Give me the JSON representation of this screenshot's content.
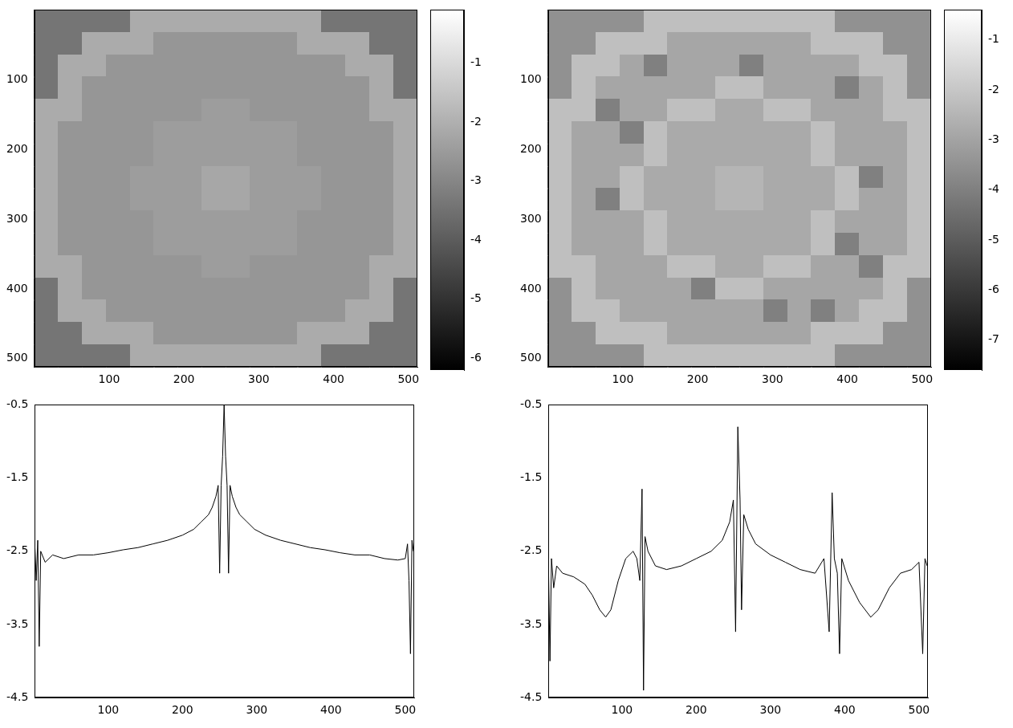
{
  "chart_data": [
    {
      "type": "heatmap",
      "x": [
        16,
        48,
        80,
        112,
        144,
        176,
        208,
        240,
        272,
        304,
        336,
        368,
        400,
        432,
        464,
        496
      ],
      "y": [
        16,
        48,
        80,
        112,
        144,
        176,
        208,
        240,
        272,
        304,
        336,
        368,
        400,
        432,
        464,
        496
      ],
      "cells": [
        [
          -3.4,
          -3.4,
          -3.4,
          -3.4,
          -2.1,
          -2.1,
          -2.1,
          -2.1,
          -2.1,
          -2.1,
          -2.1,
          -2.1,
          -3.4,
          -3.4,
          -3.4,
          -3.4
        ],
        [
          -3.4,
          -3.4,
          -2.1,
          -2.1,
          -2.1,
          -2.6,
          -2.6,
          -2.6,
          -2.6,
          -2.6,
          -2.6,
          -2.1,
          -2.1,
          -2.1,
          -3.4,
          -3.4
        ],
        [
          -3.4,
          -2.1,
          -2.1,
          -2.6,
          -2.6,
          -2.6,
          -2.6,
          -2.6,
          -2.6,
          -2.6,
          -2.6,
          -2.6,
          -2.6,
          -2.1,
          -2.1,
          -3.4
        ],
        [
          -3.4,
          -2.1,
          -2.6,
          -2.6,
          -2.6,
          -2.6,
          -2.6,
          -2.6,
          -2.6,
          -2.6,
          -2.6,
          -2.6,
          -2.6,
          -2.6,
          -2.1,
          -3.4
        ],
        [
          -2.1,
          -2.1,
          -2.6,
          -2.6,
          -2.6,
          -2.6,
          -2.6,
          -2.45,
          -2.45,
          -2.6,
          -2.6,
          -2.6,
          -2.6,
          -2.6,
          -2.1,
          -2.1
        ],
        [
          -2.1,
          -2.6,
          -2.6,
          -2.6,
          -2.6,
          -2.45,
          -2.45,
          -2.45,
          -2.45,
          -2.45,
          -2.45,
          -2.6,
          -2.6,
          -2.6,
          -2.6,
          -2.1
        ],
        [
          -2.1,
          -2.6,
          -2.6,
          -2.6,
          -2.6,
          -2.45,
          -2.45,
          -2.45,
          -2.45,
          -2.45,
          -2.45,
          -2.6,
          -2.6,
          -2.6,
          -2.6,
          -2.1
        ],
        [
          -2.1,
          -2.6,
          -2.6,
          -2.6,
          -2.45,
          -2.45,
          -2.45,
          -2.2,
          -2.2,
          -2.45,
          -2.45,
          -2.45,
          -2.6,
          -2.6,
          -2.6,
          -2.1
        ],
        [
          -2.1,
          -2.6,
          -2.6,
          -2.6,
          -2.45,
          -2.45,
          -2.45,
          -2.2,
          -2.2,
          -2.45,
          -2.45,
          -2.45,
          -2.6,
          -2.6,
          -2.6,
          -2.1
        ],
        [
          -2.1,
          -2.6,
          -2.6,
          -2.6,
          -2.6,
          -2.45,
          -2.45,
          -2.45,
          -2.45,
          -2.45,
          -2.45,
          -2.6,
          -2.6,
          -2.6,
          -2.6,
          -2.1
        ],
        [
          -2.1,
          -2.6,
          -2.6,
          -2.6,
          -2.6,
          -2.45,
          -2.45,
          -2.45,
          -2.45,
          -2.45,
          -2.45,
          -2.6,
          -2.6,
          -2.6,
          -2.6,
          -2.1
        ],
        [
          -2.1,
          -2.1,
          -2.6,
          -2.6,
          -2.6,
          -2.6,
          -2.6,
          -2.45,
          -2.45,
          -2.6,
          -2.6,
          -2.6,
          -2.6,
          -2.6,
          -2.1,
          -2.1
        ],
        [
          -3.4,
          -2.1,
          -2.6,
          -2.6,
          -2.6,
          -2.6,
          -2.6,
          -2.6,
          -2.6,
          -2.6,
          -2.6,
          -2.6,
          -2.6,
          -2.6,
          -2.1,
          -3.4
        ],
        [
          -3.4,
          -2.1,
          -2.1,
          -2.6,
          -2.6,
          -2.6,
          -2.6,
          -2.6,
          -2.6,
          -2.6,
          -2.6,
          -2.6,
          -2.6,
          -2.1,
          -2.1,
          -3.4
        ],
        [
          -3.4,
          -3.4,
          -2.1,
          -2.1,
          -2.1,
          -2.6,
          -2.6,
          -2.6,
          -2.6,
          -2.6,
          -2.6,
          -2.1,
          -2.1,
          -2.1,
          -3.4,
          -3.4
        ],
        [
          -3.4,
          -3.4,
          -3.4,
          -3.4,
          -2.1,
          -2.1,
          -2.1,
          -2.1,
          -2.1,
          -2.1,
          -2.1,
          -2.1,
          -3.4,
          -3.4,
          -3.4,
          -3.4
        ]
      ],
      "xlim": [
        0,
        512
      ],
      "ylim": [
        512,
        0
      ],
      "xticks": [
        100,
        200,
        300,
        400,
        500
      ],
      "yticks": [
        100,
        200,
        300,
        400,
        500
      ],
      "colorbar_range": [
        -6.2,
        -0.1
      ],
      "colorbar_ticks": [
        -6,
        -5,
        -4,
        -3,
        -2,
        -1
      ],
      "grid": false
    },
    {
      "type": "heatmap",
      "x": [
        16,
        48,
        80,
        112,
        144,
        176,
        208,
        240,
        272,
        304,
        336,
        368,
        400,
        432,
        464,
        496
      ],
      "y": [
        16,
        48,
        80,
        112,
        144,
        176,
        208,
        240,
        272,
        304,
        336,
        368,
        400,
        432,
        464,
        496
      ],
      "cells": [
        [
          -3.5,
          -3.5,
          -3.5,
          -3.5,
          -2.2,
          -2.2,
          -2.2,
          -2.2,
          -2.2,
          -2.2,
          -2.2,
          -2.2,
          -3.5,
          -3.5,
          -3.5,
          -3.5
        ],
        [
          -3.5,
          -3.5,
          -2.2,
          -2.2,
          -2.2,
          -2.9,
          -2.9,
          -2.9,
          -2.9,
          -2.9,
          -2.9,
          -2.2,
          -2.2,
          -2.2,
          -3.5,
          -3.5
        ],
        [
          -3.5,
          -2.2,
          -2.2,
          -2.9,
          -4.0,
          -2.9,
          -2.9,
          -2.9,
          -4.0,
          -2.9,
          -2.9,
          -2.9,
          -2.9,
          -2.2,
          -2.2,
          -3.5
        ],
        [
          -3.5,
          -2.2,
          -2.9,
          -2.9,
          -2.9,
          -2.9,
          -2.9,
          -2.2,
          -2.2,
          -2.9,
          -2.9,
          -2.9,
          -4.0,
          -2.9,
          -2.2,
          -3.5
        ],
        [
          -2.2,
          -2.2,
          -4.0,
          -2.9,
          -2.9,
          -2.2,
          -2.2,
          -2.8,
          -2.8,
          -2.2,
          -2.2,
          -2.9,
          -2.9,
          -2.9,
          -2.2,
          -2.2
        ],
        [
          -2.2,
          -2.9,
          -2.9,
          -4.0,
          -2.2,
          -2.8,
          -2.8,
          -2.8,
          -2.8,
          -2.8,
          -2.8,
          -2.2,
          -2.9,
          -2.9,
          -2.9,
          -2.2
        ],
        [
          -2.2,
          -2.9,
          -2.9,
          -2.9,
          -2.2,
          -2.8,
          -2.8,
          -2.8,
          -2.8,
          -2.8,
          -2.8,
          -2.2,
          -2.9,
          -2.9,
          -2.9,
          -2.2
        ],
        [
          -2.2,
          -2.9,
          -2.9,
          -2.2,
          -2.8,
          -2.8,
          -2.8,
          -2.5,
          -2.5,
          -2.8,
          -2.8,
          -2.8,
          -2.2,
          -4.0,
          -2.9,
          -2.2
        ],
        [
          -2.2,
          -2.9,
          -4.0,
          -2.2,
          -2.8,
          -2.8,
          -2.8,
          -2.5,
          -2.5,
          -2.8,
          -2.8,
          -2.8,
          -2.2,
          -2.9,
          -2.9,
          -2.2
        ],
        [
          -2.2,
          -2.9,
          -2.9,
          -2.9,
          -2.2,
          -2.8,
          -2.8,
          -2.8,
          -2.8,
          -2.8,
          -2.8,
          -2.2,
          -2.9,
          -2.9,
          -2.9,
          -2.2
        ],
        [
          -2.2,
          -2.9,
          -2.9,
          -2.9,
          -2.2,
          -2.8,
          -2.8,
          -2.8,
          -2.8,
          -2.8,
          -2.8,
          -2.2,
          -4.0,
          -2.9,
          -2.9,
          -2.2
        ],
        [
          -2.2,
          -2.2,
          -2.9,
          -2.9,
          -2.9,
          -2.2,
          -2.2,
          -2.8,
          -2.8,
          -2.2,
          -2.2,
          -2.9,
          -2.9,
          -4.0,
          -2.2,
          -2.2
        ],
        [
          -3.5,
          -2.2,
          -2.9,
          -2.9,
          -2.9,
          -2.9,
          -4.0,
          -2.2,
          -2.2,
          -2.9,
          -2.9,
          -2.9,
          -2.9,
          -2.9,
          -2.2,
          -3.5
        ],
        [
          -3.5,
          -2.2,
          -2.2,
          -2.9,
          -2.9,
          -2.9,
          -2.9,
          -2.9,
          -2.9,
          -4.0,
          -2.9,
          -4.0,
          -2.9,
          -2.2,
          -2.2,
          -3.5
        ],
        [
          -3.5,
          -3.5,
          -2.2,
          -2.2,
          -2.2,
          -2.9,
          -2.9,
          -2.9,
          -2.9,
          -2.9,
          -2.9,
          -2.2,
          -2.2,
          -2.2,
          -3.5,
          -3.5
        ],
        [
          -3.5,
          -3.5,
          -3.5,
          -3.5,
          -2.2,
          -2.2,
          -2.2,
          -2.2,
          -2.2,
          -2.2,
          -2.2,
          -2.2,
          -3.5,
          -3.5,
          -3.5,
          -3.5
        ]
      ],
      "xlim": [
        0,
        512
      ],
      "ylim": [
        512,
        0
      ],
      "xticks": [
        100,
        200,
        300,
        400,
        500
      ],
      "yticks": [
        100,
        200,
        300,
        400,
        500
      ],
      "colorbar_range": [
        -7.6,
        -0.4
      ],
      "colorbar_ticks": [
        -7,
        -6,
        -5,
        -4,
        -3,
        -2,
        -1
      ],
      "grid": false
    },
    {
      "type": "line",
      "x": [
        1,
        3,
        5,
        7,
        9,
        15,
        25,
        40,
        60,
        80,
        100,
        120,
        140,
        160,
        180,
        200,
        215,
        225,
        235,
        240,
        245,
        248,
        250,
        252,
        254,
        256,
        258,
        260,
        262,
        264,
        267,
        272,
        277,
        287,
        297,
        312,
        332,
        352,
        372,
        392,
        412,
        432,
        452,
        472,
        490,
        500,
        503,
        505,
        507,
        509,
        511
      ],
      "values": [
        -2.4,
        -2.9,
        -2.35,
        -3.8,
        -2.5,
        -2.65,
        -2.55,
        -2.6,
        -2.55,
        -2.55,
        -2.52,
        -2.48,
        -2.45,
        -2.4,
        -2.35,
        -2.28,
        -2.2,
        -2.1,
        -2.0,
        -1.9,
        -1.75,
        -1.6,
        -2.8,
        -1.6,
        -1.2,
        -0.5,
        -1.2,
        -1.6,
        -2.8,
        -1.6,
        -1.75,
        -1.9,
        -2.0,
        -2.1,
        -2.2,
        -2.28,
        -2.35,
        -2.4,
        -2.45,
        -2.48,
        -2.52,
        -2.55,
        -2.55,
        -2.6,
        -2.62,
        -2.6,
        -2.4,
        -2.9,
        -3.9,
        -2.35,
        -2.5
      ],
      "color": "#000000",
      "xlim": [
        1,
        512
      ],
      "ylim": [
        -4.5,
        -0.5
      ],
      "xticks": [
        100,
        200,
        300,
        400,
        500
      ],
      "yticks": [
        -4.5,
        -3.5,
        -2.5,
        -1.5,
        -0.5
      ],
      "grid": false
    },
    {
      "type": "line",
      "x": [
        1,
        3,
        5,
        8,
        12,
        20,
        35,
        50,
        60,
        70,
        78,
        85,
        95,
        105,
        115,
        120,
        124,
        127,
        129,
        131,
        135,
        145,
        160,
        180,
        200,
        220,
        235,
        245,
        250,
        253,
        256,
        259,
        261,
        264,
        270,
        280,
        300,
        320,
        340,
        360,
        372,
        379,
        383,
        386,
        390,
        393,
        396,
        405,
        420,
        435,
        445,
        460,
        475,
        490,
        500,
        505,
        508,
        511
      ],
      "values": [
        -2.7,
        -4.0,
        -2.6,
        -3.0,
        -2.7,
        -2.8,
        -2.85,
        -2.95,
        -3.1,
        -3.3,
        -3.4,
        -3.3,
        -2.9,
        -2.6,
        -2.5,
        -2.6,
        -2.9,
        -1.65,
        -4.4,
        -2.3,
        -2.5,
        -2.7,
        -2.75,
        -2.7,
        -2.6,
        -2.5,
        -2.35,
        -2.1,
        -1.8,
        -3.6,
        -0.8,
        -1.8,
        -3.3,
        -2.0,
        -2.2,
        -2.4,
        -2.55,
        -2.65,
        -2.75,
        -2.8,
        -2.6,
        -3.6,
        -1.7,
        -2.6,
        -2.8,
        -3.9,
        -2.6,
        -2.9,
        -3.2,
        -3.4,
        -3.3,
        -3.0,
        -2.8,
        -2.75,
        -2.65,
        -3.9,
        -2.6,
        -2.7
      ],
      "color": "#000000",
      "xlim": [
        1,
        512
      ],
      "ylim": [
        -4.5,
        -0.5
      ],
      "xticks": [
        100,
        200,
        300,
        400,
        500
      ],
      "yticks": [
        -4.5,
        -3.5,
        -2.5,
        -1.5,
        -0.5
      ],
      "grid": false
    }
  ]
}
